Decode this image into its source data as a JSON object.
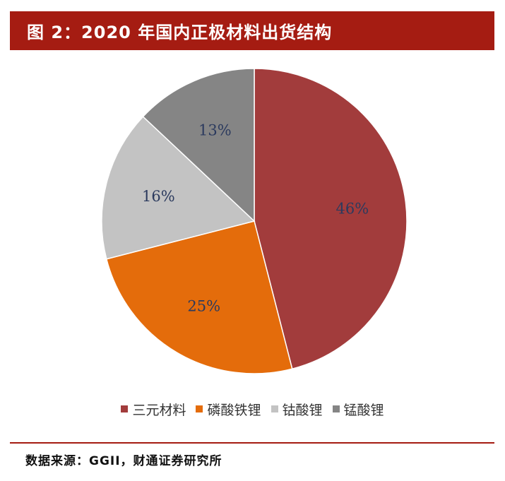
{
  "header": {
    "title": "图 2：2020 年国内正极材料出货结构"
  },
  "chart_data": {
    "type": "pie",
    "title": "",
    "categories": [
      "三元材料",
      "磷酸铁锂",
      "钴酸锂",
      "锰酸锂"
    ],
    "values": [
      46,
      25,
      16,
      13
    ],
    "labels": [
      "46%",
      "25%",
      "16%",
      "13%"
    ],
    "colors": [
      "#a23c3c",
      "#e46c0b",
      "#c3c3c3",
      "#858585"
    ],
    "start_angle": "12 o'clock",
    "direction": "clockwise",
    "legend": "bottom"
  },
  "footer": {
    "source": "数据来源：GGII，财通证券研究所"
  },
  "theme": {
    "accent": "#a51c12",
    "label_color": "#2b3a5e"
  }
}
